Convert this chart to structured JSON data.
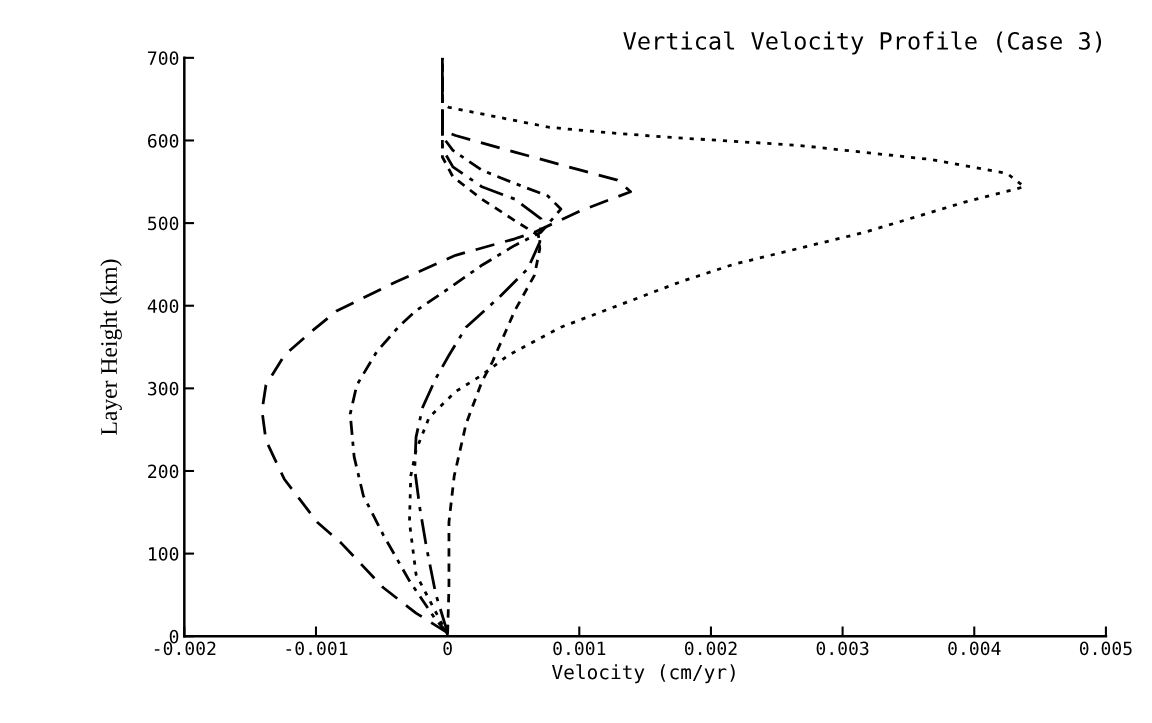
{
  "chart_data": {
    "type": "line",
    "title": "Vertical Velocity Profile (Case 3)",
    "xlabel": "Velocity (cm/yr)",
    "ylabel": "Layer Height (km)",
    "xlim": [
      -0.002,
      0.005
    ],
    "xticks": [
      -0.002,
      -0.001,
      0,
      0.001,
      0.002,
      0.003,
      0.004,
      0.005
    ],
    "ylim": [
      0,
      700
    ],
    "yticks": [
      0,
      100,
      200,
      300,
      400,
      500,
      600,
      700
    ],
    "grid": false,
    "legend": false,
    "marker": "none",
    "series": [
      {
        "color": "#000000",
        "line_style": "dotted",
        "x": [
          0,
          -6e-05,
          -0.00024,
          -0.00029,
          -0.00028,
          -0.00024,
          -0.00014,
          6e-05,
          0.00026,
          0.00046,
          0.00086,
          0.00177,
          0.00217,
          0.00317,
          0.00392,
          0.00438,
          0.00425,
          0.00367,
          0.00267,
          0.00167,
          0.00117,
          0.00077,
          1e-05,
          -4e-05,
          -4e-05
        ],
        "values": [
          2,
          20,
          75,
          138,
          194,
          225,
          265,
          296,
          316,
          340,
          374,
          429,
          450,
          489,
          525,
          544,
          560,
          577,
          594,
          604,
          610,
          616,
          640,
          645,
          700
        ]
      },
      {
        "color": "#000000",
        "line_style": "dashed",
        "x": [
          0,
          -0.00024,
          -0.00049,
          -0.00081,
          -0.00099,
          -0.00124,
          -0.00138,
          -0.00141,
          -0.00138,
          -0.00124,
          -0.00104,
          -0.00084,
          -0.00039,
          6e-05,
          0.00051,
          0.00066,
          0.00101,
          0.00139,
          0.00129,
          0.00101,
          0.00051,
          6e-05,
          -4e-05,
          -4e-05
        ],
        "values": [
          4,
          28,
          59,
          113,
          138,
          190,
          237,
          273,
          304,
          340,
          368,
          394,
          429,
          461,
          481,
          489,
          515,
          538,
          552,
          564,
          586,
          606,
          612,
          700
        ]
      },
      {
        "color": "#000000",
        "line_style": "dashdot",
        "x": [
          0,
          -9e-05,
          -0.00029,
          -0.00049,
          -0.00064,
          -0.00071,
          -0.00074,
          -0.00069,
          -0.00054,
          -0.00037,
          -0.00024,
          1e-05,
          0.00026,
          0.00051,
          0.00071,
          0.00086,
          0.00076,
          0.00051,
          0.00026,
          4e-05,
          -4e-05,
          -4e-05
        ],
        "values": [
          4,
          20,
          67,
          123,
          170,
          217,
          269,
          304,
          344,
          375,
          394,
          421,
          449,
          473,
          489,
          517,
          533,
          548,
          564,
          588,
          605,
          700
        ]
      },
      {
        "color": "#000000",
        "line_style": "longdashdot",
        "x": [
          0,
          -9e-05,
          -0.00016,
          -0.00021,
          -0.00025,
          -0.00024,
          -0.00019,
          -9e-05,
          1e-05,
          0.00014,
          0.00039,
          0.00061,
          0.0007,
          0.00071,
          0.00051,
          0.00026,
          4e-05,
          -4e-05,
          -4e-05
        ],
        "values": [
          4,
          51,
          107,
          154,
          202,
          241,
          277,
          312,
          340,
          374,
          410,
          445,
          477,
          505,
          529,
          544,
          568,
          590,
          700
        ]
      },
      {
        "color": "#000000",
        "line_style": "shortdashed",
        "x": [
          0,
          1e-05,
          1e-05,
          5e-05,
          0.00014,
          0.00026,
          0.00034,
          0.00051,
          0.00066,
          0.0007,
          0.00069,
          0.00051,
          0.00026,
          4e-05,
          -4e-05,
          -4e-05
        ],
        "values": [
          4,
          59,
          138,
          194,
          257,
          308,
          332,
          394,
          437,
          469,
          485,
          503,
          529,
          556,
          580,
          700
        ]
      }
    ]
  }
}
